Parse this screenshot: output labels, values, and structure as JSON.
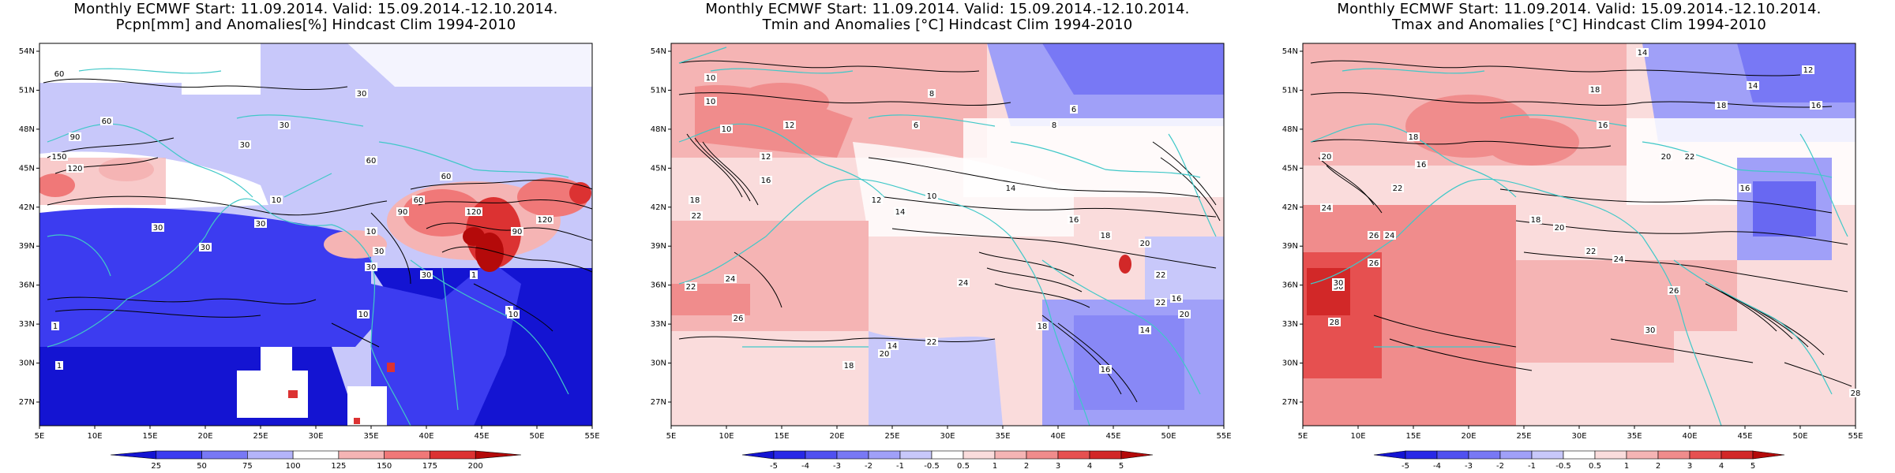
{
  "panels": [
    {
      "title_line1": "Monthly ECMWF Start: 11.09.2014. Valid: 15.09.2014.-12.10.2014.",
      "title_line2": "Pcpn[mm] and Anomalies[%] Hindcast Clim 1994-2010",
      "lat_labels": [
        "54N",
        "51N",
        "48N",
        "45N",
        "42N",
        "39N",
        "36N",
        "33N",
        "30N",
        "27N"
      ],
      "lon_labels": [
        "5E",
        "10E",
        "15E",
        "20E",
        "25E",
        "30E",
        "35E",
        "40E",
        "45E",
        "50E",
        "55E"
      ],
      "colorbar_labels": [
        "25",
        "50",
        "75",
        "100",
        "125",
        "150",
        "175",
        "200"
      ],
      "colorbar_colors": [
        "#1414d2",
        "#3c3cf0",
        "#7878f5",
        "#b4b4fa",
        "#ffffff",
        "#f5b4b4",
        "#f07878",
        "#dc3232",
        "#b40a0a"
      ],
      "contour_labels": [
        "60",
        "60",
        "90",
        "150",
        "120",
        "30",
        "30",
        "30",
        "30",
        "30",
        "30",
        "60",
        "10",
        "1",
        "1",
        "10",
        "30",
        "30",
        "60",
        "60",
        "90",
        "120",
        "120",
        "90",
        "10",
        "30",
        "1",
        "10",
        "1"
      ]
    },
    {
      "title_line1": "Monthly ECMWF Start: 11.09.2014. Valid: 15.09.2014.-12.10.2014.",
      "title_line2": "Tmin and Anomalies [°C] Hindcast Clim 1994-2010",
      "lat_labels": [
        "54N",
        "51N",
        "48N",
        "45N",
        "42N",
        "39N",
        "36N",
        "33N",
        "30N",
        "27N"
      ],
      "lon_labels": [
        "5E",
        "10E",
        "15E",
        "20E",
        "25E",
        "30E",
        "35E",
        "40E",
        "45E",
        "50E",
        "55E"
      ],
      "colorbar_labels": [
        "-5",
        "-4",
        "-3",
        "-2",
        "-1",
        "-0.5",
        "0.5",
        "1",
        "2",
        "3",
        "4",
        "5"
      ],
      "colorbar_colors": [
        "#1414d2",
        "#2828e6",
        "#5050f0",
        "#7878f5",
        "#a0a0f8",
        "#c8c8fa",
        "#ffffff",
        "#fadcdc",
        "#f5b4b4",
        "#f08c8c",
        "#e65050",
        "#d22828",
        "#b40a0a"
      ],
      "contour_labels": [
        "10",
        "8",
        "6",
        "6",
        "8",
        "10",
        "10",
        "12",
        "12",
        "16",
        "18",
        "22",
        "22",
        "24",
        "26",
        "14",
        "18",
        "20",
        "22",
        "24",
        "14",
        "12",
        "10",
        "14",
        "16",
        "18",
        "20",
        "22",
        "22",
        "16",
        "20",
        "18",
        "14",
        "16"
      ]
    },
    {
      "title_line1": "Monthly ECMWF Start: 11.09.2014. Valid: 15.09.2014.-12.10.2014.",
      "title_line2": "Tmax and Anomalies [°C] Hindcast Clim 1994-2010",
      "lat_labels": [
        "54N",
        "51N",
        "48N",
        "45N",
        "42N",
        "39N",
        "36N",
        "33N",
        "30N",
        "27N"
      ],
      "lon_labels": [
        "5E",
        "10E",
        "15E",
        "20E",
        "25E",
        "30E",
        "35E",
        "40E",
        "45E",
        "50E",
        "55E"
      ],
      "colorbar_labels": [
        "-5",
        "-4",
        "-3",
        "-2",
        "-1",
        "-0.5",
        "0.5",
        "1",
        "2",
        "3",
        "4",
        "5"
      ],
      "colorbar_colors": [
        "#1414d2",
        "#2828e6",
        "#5050f0",
        "#7878f5",
        "#a0a0f8",
        "#c8c8fa",
        "#ffffff",
        "#fadcdc",
        "#f5b4b4",
        "#f08c8c",
        "#e65050",
        "#d22828",
        "#b40a0a"
      ],
      "contour_labels": [
        "14",
        "12",
        "14",
        "16",
        "18",
        "18",
        "16",
        "20",
        "22",
        "24",
        "26",
        "30",
        "28",
        "20",
        "18",
        "16",
        "22",
        "24",
        "26",
        "30",
        "30",
        "28",
        "26",
        "24",
        "22",
        "20",
        "18",
        "16"
      ]
    }
  ]
}
